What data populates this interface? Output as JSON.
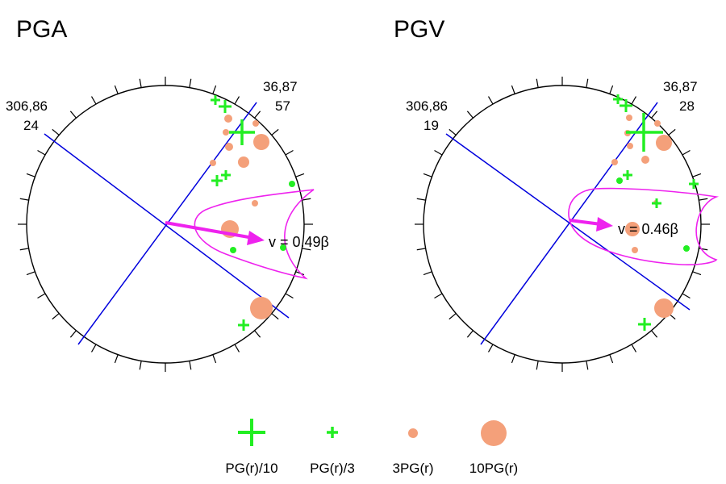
{
  "panels": [
    {
      "title": "PGA",
      "label_left_top": "306,86",
      "label_left_bottom": "24",
      "label_right_top": "36,87",
      "label_right_bottom": "57",
      "velocity_label": "v = 0.49β"
    },
    {
      "title": "PGV",
      "label_left_top": "306,86",
      "label_left_bottom": "19",
      "label_right_top": "36,87",
      "label_right_bottom": "28",
      "velocity_label": "v = 0.46β"
    }
  ],
  "legend": {
    "items": [
      {
        "label": "PG(r)/10",
        "symbol": "large-plus"
      },
      {
        "label": "PG(r)/3",
        "symbol": "small-plus"
      },
      {
        "label": "3PG(r)",
        "symbol": "small-circle"
      },
      {
        "label": "10PG(r)",
        "symbol": "large-circle"
      }
    ]
  },
  "colors": {
    "plus": "#22ee22",
    "circle": "#f4a07a",
    "plane": "#0000dd",
    "arrow": "#ee22ee",
    "outline": "#000000"
  }
}
